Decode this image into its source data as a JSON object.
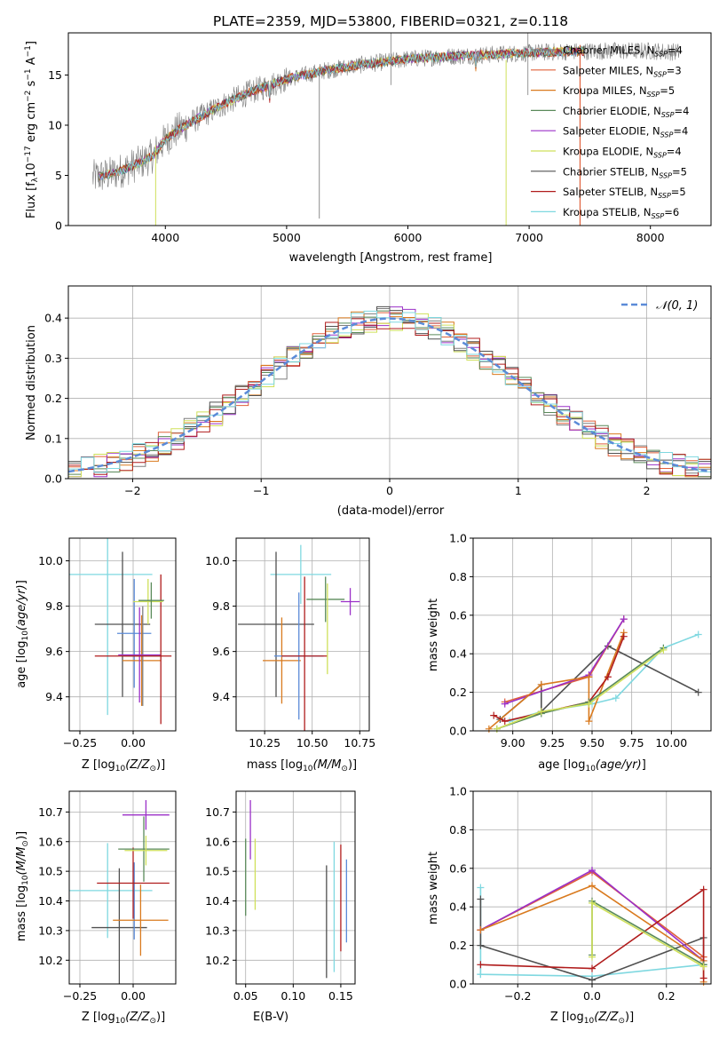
{
  "title": "PLATE=2359, MJD=53800, FIBERID=0321, z=0.118",
  "colors": {
    "chabrier_miles": "#7f7f7f",
    "salpeter_miles": "#e0603a",
    "kroupa_miles": "#d97a1e",
    "chabrier_elodie": "#5a8a5a",
    "salpeter_elodie": "#9b30c8",
    "kroupa_elodie": "#cfe05a",
    "chabrier_stelib": "#505050",
    "salpeter_stelib": "#b01c1c",
    "kroupa_stelib": "#7fd8e0",
    "normal": "#5b8bd8"
  },
  "chart_data": [
    {
      "type": "line",
      "panel": "spectrum",
      "xlabel": "wavelength [Angstrom, rest frame]",
      "ylabel": "Flux [fλ10⁻¹⁷ erg cm⁻² s⁻¹ A⁻¹]",
      "xlim": [
        3200,
        8500
      ],
      "ylim": [
        0,
        19.2
      ],
      "xticks": [
        4000,
        5000,
        6000,
        7000,
        8000
      ],
      "yticks": [
        0,
        5,
        10,
        15
      ],
      "grid": false,
      "legend_position": "right",
      "continuum": {
        "x": [
          3400,
          3500,
          3600,
          3700,
          3800,
          3900,
          4000,
          4100,
          4200,
          4300,
          4500,
          4700,
          5000,
          5300,
          5600,
          6000,
          6400,
          6800,
          7200,
          7600,
          8000,
          8200
        ],
        "y": [
          4.8,
          5.0,
          5.3,
          5.8,
          6.3,
          7.0,
          8.6,
          9.5,
          10.2,
          10.9,
          12.2,
          13.3,
          14.6,
          15.4,
          16.0,
          16.6,
          16.9,
          17.1,
          17.3,
          17.4,
          17.4,
          17.3
        ]
      },
      "series": [
        {
          "name": "Chabrier MILES, N$_{SSP}$=4",
          "color_key": "chabrier_miles",
          "label_main": "Chabrier MILES, N",
          "label_sub": "SSP",
          "label_end": "=4"
        },
        {
          "name": "Salpeter MILES, N$_{SSP}$=3",
          "color_key": "salpeter_miles",
          "label_main": "Salpeter MILES, N",
          "label_sub": "SSP",
          "label_end": "=3"
        },
        {
          "name": "Kroupa MILES, N$_{SSP}$=5",
          "color_key": "kroupa_miles",
          "label_main": "Kroupa MILES, N",
          "label_sub": "SSP",
          "label_end": "=5"
        },
        {
          "name": "Chabrier ELODIE, N$_{SSP}$=4",
          "color_key": "chabrier_elodie",
          "label_main": "Chabrier ELODIE, N",
          "label_sub": "SSP",
          "label_end": "=4"
        },
        {
          "name": "Salpeter ELODIE, N$_{SSP}$=4",
          "color_key": "salpeter_elodie",
          "label_main": "Salpeter ELODIE, N",
          "label_sub": "SSP",
          "label_end": "=4"
        },
        {
          "name": "Kroupa ELODIE, N$_{SSP}$=4",
          "color_key": "kroupa_elodie",
          "label_main": "Kroupa ELODIE, N",
          "label_sub": "SSP",
          "label_end": "=4"
        },
        {
          "name": "Chabrier STELIB, N$_{SSP}$=5",
          "color_key": "chabrier_stelib",
          "label_main": "Chabrier STELIB, N",
          "label_sub": "SSP",
          "label_end": "=5"
        },
        {
          "name": "Salpeter STELIB, N$_{SSP}$=5",
          "color_key": "salpeter_stelib",
          "label_main": "Salpeter STELIB, N",
          "label_sub": "SSP",
          "label_end": "=5"
        },
        {
          "name": "Kroupa STELIB, N$_{SSP}$=6",
          "color_key": "kroupa_stelib",
          "label_main": "Kroupa STELIB, N",
          "label_sub": "SSP",
          "label_end": "=6"
        }
      ]
    },
    {
      "type": "histogram",
      "panel": "residuals",
      "xlabel": "(data-model)/error",
      "ylabel": "Normed distribution",
      "xlim": [
        -2.5,
        2.5
      ],
      "ylim": [
        0,
        0.48
      ],
      "xticks": [
        -2,
        -1,
        0,
        1,
        2
      ],
      "xtick_labels": [
        "−2",
        "−1",
        "0",
        "1",
        "2"
      ],
      "yticks": [
        0.0,
        0.1,
        0.2,
        0.3,
        0.4
      ],
      "ytick_labels": [
        "0.0",
        "0.1",
        "0.2",
        "0.3",
        "0.4"
      ],
      "grid": true,
      "legend_position": "top-right",
      "reference_curve": {
        "name": "N(0,1)",
        "label_italic": "𝒩(0, 1)",
        "mean": 0,
        "sigma": 1
      },
      "bins": {
        "start": -2.5,
        "width": 0.1
      }
    },
    {
      "type": "errorbar",
      "panel": "age_vs_Z",
      "xlabel": "Z [log₁₀(Z/Z☉)]",
      "ylabel": "age  [log₁₀(age/yr)]",
      "xlim": [
        -0.3,
        0.2
      ],
      "ylim": [
        9.25,
        10.1
      ],
      "xticks": [
        -0.25,
        0.0
      ],
      "xtick_labels": [
        "−0.25",
        "0.00"
      ],
      "yticks": [
        9.4,
        9.6,
        9.8,
        10.0
      ],
      "ytick_labels": [
        "9.4",
        "9.6",
        "9.8",
        "10.0"
      ],
      "grid": true,
      "points": [
        {
          "color_key": "kroupa_stelib",
          "x": -0.12,
          "xerr": 0.21,
          "y": 9.94,
          "yerr": 0.62
        },
        {
          "color_key": "chabrier_stelib",
          "x": -0.05,
          "xerr": 0.13,
          "y": 9.72,
          "yerr": 0.32
        },
        {
          "color_key": "normal",
          "x": 0.005,
          "xerr": 0.08,
          "y": 9.68,
          "yerr": 0.24
        },
        {
          "color_key": "kroupa_miles",
          "x": 0.04,
          "xerr": 0.09,
          "y": 9.56,
          "yerr": 0.2
        },
        {
          "color_key": "chabrier_miles",
          "x": 0.045,
          "xerr": 0.09,
          "y": 9.58,
          "yerr": 0.22
        },
        {
          "color_key": "salpeter_elodie",
          "x": 0.03,
          "xerr": 0.1,
          "y": 9.585,
          "yerr": 0.21
        },
        {
          "color_key": "salpeter_stelib",
          "x": 0.0,
          "xerr": 0.18,
          "y": 9.58,
          "yerr": 0.0
        },
        {
          "color_key": "salpeter_stelib",
          "x": 0.13,
          "xerr": 0.0,
          "y": 9.61,
          "yerr": 0.33
        },
        {
          "color_key": "kroupa_elodie",
          "x": 0.07,
          "xerr": 0.07,
          "y": 9.82,
          "yerr": 0.1
        },
        {
          "color_key": "chabrier_elodie",
          "x": 0.085,
          "xerr": 0.06,
          "y": 9.825,
          "yerr": 0.08
        }
      ]
    },
    {
      "type": "errorbar",
      "panel": "age_vs_mass",
      "xlabel": "mass [log₁₀(M/M☉)]",
      "ylabel": "",
      "xlim": [
        10.1,
        10.8
      ],
      "ylim": [
        9.25,
        10.1
      ],
      "xticks": [
        10.25,
        10.5,
        10.75
      ],
      "xtick_labels": [
        "10.25",
        "10.50",
        "10.75"
      ],
      "yticks": [
        9.4,
        9.6,
        9.8,
        10.0
      ],
      "ytick_labels": [
        "9.4",
        "9.6",
        "9.8",
        "10.0"
      ],
      "grid": true,
      "points": [
        {
          "color_key": "kroupa_stelib",
          "x": 10.44,
          "xerr": 0.16,
          "y": 9.94,
          "yerr": 0.13
        },
        {
          "color_key": "chabrier_stelib",
          "x": 10.31,
          "xerr": 0.2,
          "y": 9.72,
          "yerr": 0.32
        },
        {
          "color_key": "kroupa_miles",
          "x": 10.34,
          "xerr": 0.1,
          "y": 9.56,
          "yerr": 0.19
        },
        {
          "color_key": "normal",
          "x": 10.43,
          "xerr": 0.13,
          "y": 9.58,
          "yerr": 0.28
        },
        {
          "color_key": "salpeter_stelib",
          "x": 10.46,
          "xerr": 0.12,
          "y": 9.58,
          "yerr": 0.35
        },
        {
          "color_key": "chabrier_elodie",
          "x": 10.57,
          "xerr": 0.1,
          "y": 9.83,
          "yerr": 0.1
        },
        {
          "color_key": "kroupa_elodie",
          "x": 10.58,
          "xerr": 0.0,
          "y": 9.7,
          "yerr": 0.2
        },
        {
          "color_key": "salpeter_elodie",
          "x": 10.7,
          "xerr": 0.05,
          "y": 9.82,
          "yerr": 0.06
        }
      ]
    },
    {
      "type": "line",
      "panel": "mass_weight_vs_age",
      "xlabel": "age  [log₁₀(age/yr)]",
      "ylabel": "mass weight",
      "xlim": [
        8.75,
        10.25
      ],
      "ylim": [
        0,
        1.0
      ],
      "xticks": [
        9.0,
        9.25,
        9.5,
        9.75,
        10.0
      ],
      "xtick_labels": [
        "9.00",
        "9.25",
        "9.50",
        "9.75",
        "10.00"
      ],
      "yticks": [
        0.0,
        0.2,
        0.4,
        0.6,
        0.8,
        1.0
      ],
      "ytick_labels": [
        "0.0",
        "0.2",
        "0.4",
        "0.6",
        "0.8",
        "1.0"
      ],
      "grid": true,
      "series": [
        {
          "color_key": "kroupa_stelib",
          "x": [
            8.98,
            9.18,
            9.5,
            9.65,
            9.95,
            10.17
          ],
          "y": [
            0.05,
            0.1,
            0.14,
            0.17,
            0.43,
            0.5
          ]
        },
        {
          "color_key": "chabrier_stelib",
          "x": [
            8.92,
            9.18,
            9.18,
            9.6,
            10.17
          ],
          "y": [
            0.06,
            0.24,
            0.1,
            0.44,
            0.2
          ]
        },
        {
          "color_key": "salpeter_miles",
          "x": [
            8.95,
            9.48,
            9.7
          ],
          "y": [
            0.15,
            0.28,
            0.58
          ]
        },
        {
          "color_key": "salpeter_elodie",
          "x": [
            8.95,
            9.48,
            9.7
          ],
          "y": [
            0.14,
            0.29,
            0.58
          ]
        },
        {
          "color_key": "kroupa_miles",
          "x": [
            8.85,
            9.18,
            9.48,
            9.48,
            9.7
          ],
          "y": [
            0.01,
            0.24,
            0.28,
            0.05,
            0.51
          ]
        },
        {
          "color_key": "salpeter_stelib",
          "x": [
            8.88,
            8.95,
            9.48,
            9.6,
            9.7
          ],
          "y": [
            0.08,
            0.05,
            0.15,
            0.28,
            0.49
          ]
        },
        {
          "color_key": "chabrier_elodie",
          "x": [
            8.9,
            9.18,
            9.48,
            9.95
          ],
          "y": [
            0.01,
            0.09,
            0.15,
            0.43
          ]
        },
        {
          "color_key": "kroupa_elodie",
          "x": [
            8.9,
            9.18,
            9.48,
            9.95
          ],
          "y": [
            0.01,
            0.1,
            0.14,
            0.42
          ]
        }
      ]
    },
    {
      "type": "errorbar",
      "panel": "mass_vs_Z",
      "xlabel": "Z [log₁₀(Z/Z☉)]",
      "ylabel": "mass [log₁₀(M/M☉)]",
      "xlim": [
        -0.3,
        0.2
      ],
      "ylim": [
        10.12,
        10.77
      ],
      "xticks": [
        -0.25,
        0.0
      ],
      "xtick_labels": [
        "−0.25",
        "0.00"
      ],
      "yticks": [
        10.2,
        10.3,
        10.4,
        10.5,
        10.6,
        10.7
      ],
      "ytick_labels": [
        "10.2",
        "10.3",
        "10.4",
        "10.5",
        "10.6",
        "10.7"
      ],
      "grid": true,
      "points": [
        {
          "color_key": "kroupa_stelib",
          "x": -0.12,
          "xerr": 0.21,
          "y": 10.435,
          "yerr": 0.16
        },
        {
          "color_key": "chabrier_stelib",
          "x": -0.065,
          "xerr": 0.13,
          "y": 10.31,
          "yerr": 0.2
        },
        {
          "color_key": "normal",
          "x": 0.005,
          "xerr": 0.0,
          "y": 10.4,
          "yerr": 0.13
        },
        {
          "color_key": "kroupa_miles",
          "x": 0.035,
          "xerr": 0.13,
          "y": 10.335,
          "yerr": 0.12
        },
        {
          "color_key": "salpeter_stelib",
          "x": 0.0,
          "xerr": 0.17,
          "y": 10.46,
          "yerr": 0.12
        },
        {
          "color_key": "chabrier_elodie",
          "x": 0.05,
          "xerr": 0.12,
          "y": 10.575,
          "yerr": 0.11
        },
        {
          "color_key": "kroupa_elodie",
          "x": 0.06,
          "xerr": 0.1,
          "y": 10.57,
          "yerr": 0.05
        },
        {
          "color_key": "salpeter_elodie",
          "x": 0.06,
          "xerr": 0.11,
          "y": 10.69,
          "yerr": 0.05
        }
      ]
    },
    {
      "type": "errorbar",
      "panel": "mass_vs_EBV",
      "xlabel": "E(B-V)",
      "ylabel": "",
      "xlim": [
        0.04,
        0.165
      ],
      "ylim": [
        10.12,
        10.77
      ],
      "xticks": [
        0.05,
        0.1,
        0.15
      ],
      "xtick_labels": [
        "0.05",
        "0.10",
        "0.15"
      ],
      "yticks": [
        10.2,
        10.3,
        10.4,
        10.5,
        10.6,
        10.7
      ],
      "ytick_labels": [
        "10.2",
        "10.3",
        "10.4",
        "10.5",
        "10.6",
        "10.7"
      ],
      "grid": true,
      "points": [
        {
          "color_key": "chabrier_elodie",
          "x": 0.05,
          "xerr": 0.0,
          "y": 10.48,
          "yerr": 0.13
        },
        {
          "color_key": "salpeter_elodie",
          "x": 0.055,
          "xerr": 0.0,
          "y": 10.64,
          "yerr": 0.1
        },
        {
          "color_key": "kroupa_elodie",
          "x": 0.06,
          "xerr": 0.0,
          "y": 10.49,
          "yerr": 0.12
        },
        {
          "color_key": "chabrier_stelib",
          "x": 0.135,
          "xerr": 0.0,
          "y": 10.33,
          "yerr": 0.19
        },
        {
          "color_key": "kroupa_stelib",
          "x": 0.143,
          "xerr": 0.0,
          "y": 10.38,
          "yerr": 0.22
        },
        {
          "color_key": "salpeter_stelib",
          "x": 0.15,
          "xerr": 0.0,
          "y": 10.41,
          "yerr": 0.18
        },
        {
          "color_key": "normal",
          "x": 0.156,
          "xerr": 0.0,
          "y": 10.4,
          "yerr": 0.14
        }
      ]
    },
    {
      "type": "line",
      "panel": "mass_weight_vs_Z",
      "xlabel": "Z [log₁₀(Z/Z☉)]",
      "ylabel": "mass weight",
      "xlim": [
        -0.32,
        0.32
      ],
      "ylim": [
        0,
        1.0
      ],
      "xticks": [
        -0.2,
        0.0,
        0.2
      ],
      "xtick_labels": [
        "−0.2",
        "0.0",
        "0.2"
      ],
      "yticks": [
        0.0,
        0.2,
        0.4,
        0.6,
        0.8,
        1.0
      ],
      "ytick_labels": [
        "0.0",
        "0.2",
        "0.4",
        "0.6",
        "0.8",
        "1.0"
      ],
      "grid": true,
      "series": [
        {
          "color_key": "kroupa_stelib",
          "x": [
            -0.3,
            -0.3,
            -0.3,
            0.0,
            0.3
          ],
          "y": [
            0.5,
            0.05,
            0.05,
            0.04,
            0.1
          ]
        },
        {
          "color_key": "chabrier_stelib",
          "x": [
            -0.3,
            -0.3,
            0.0,
            0.3,
            0.3
          ],
          "y": [
            0.44,
            0.2,
            0.02,
            0.24,
            0.1
          ]
        },
        {
          "color_key": "salpeter_miles",
          "x": [
            -0.3,
            0.0,
            0.3
          ],
          "y": [
            0.28,
            0.58,
            0.14
          ]
        },
        {
          "color_key": "salpeter_elodie",
          "x": [
            -0.3,
            0.0,
            0.3
          ],
          "y": [
            0.28,
            0.59,
            0.12
          ]
        },
        {
          "color_key": "kroupa_miles",
          "x": [
            -0.3,
            0.0,
            0.3,
            0.3
          ],
          "y": [
            0.28,
            0.51,
            0.12,
            0.01
          ]
        },
        {
          "color_key": "salpeter_stelib",
          "x": [
            -0.3,
            0.0,
            0.3,
            0.3
          ],
          "y": [
            0.1,
            0.08,
            0.49,
            0.03
          ]
        },
        {
          "color_key": "chabrier_elodie",
          "x": [
            0.0,
            0.0,
            0.3
          ],
          "y": [
            0.15,
            0.43,
            0.1
          ]
        },
        {
          "color_key": "kroupa_elodie",
          "x": [
            0.0,
            0.0,
            0.3
          ],
          "y": [
            0.14,
            0.42,
            0.09
          ]
        }
      ]
    }
  ]
}
